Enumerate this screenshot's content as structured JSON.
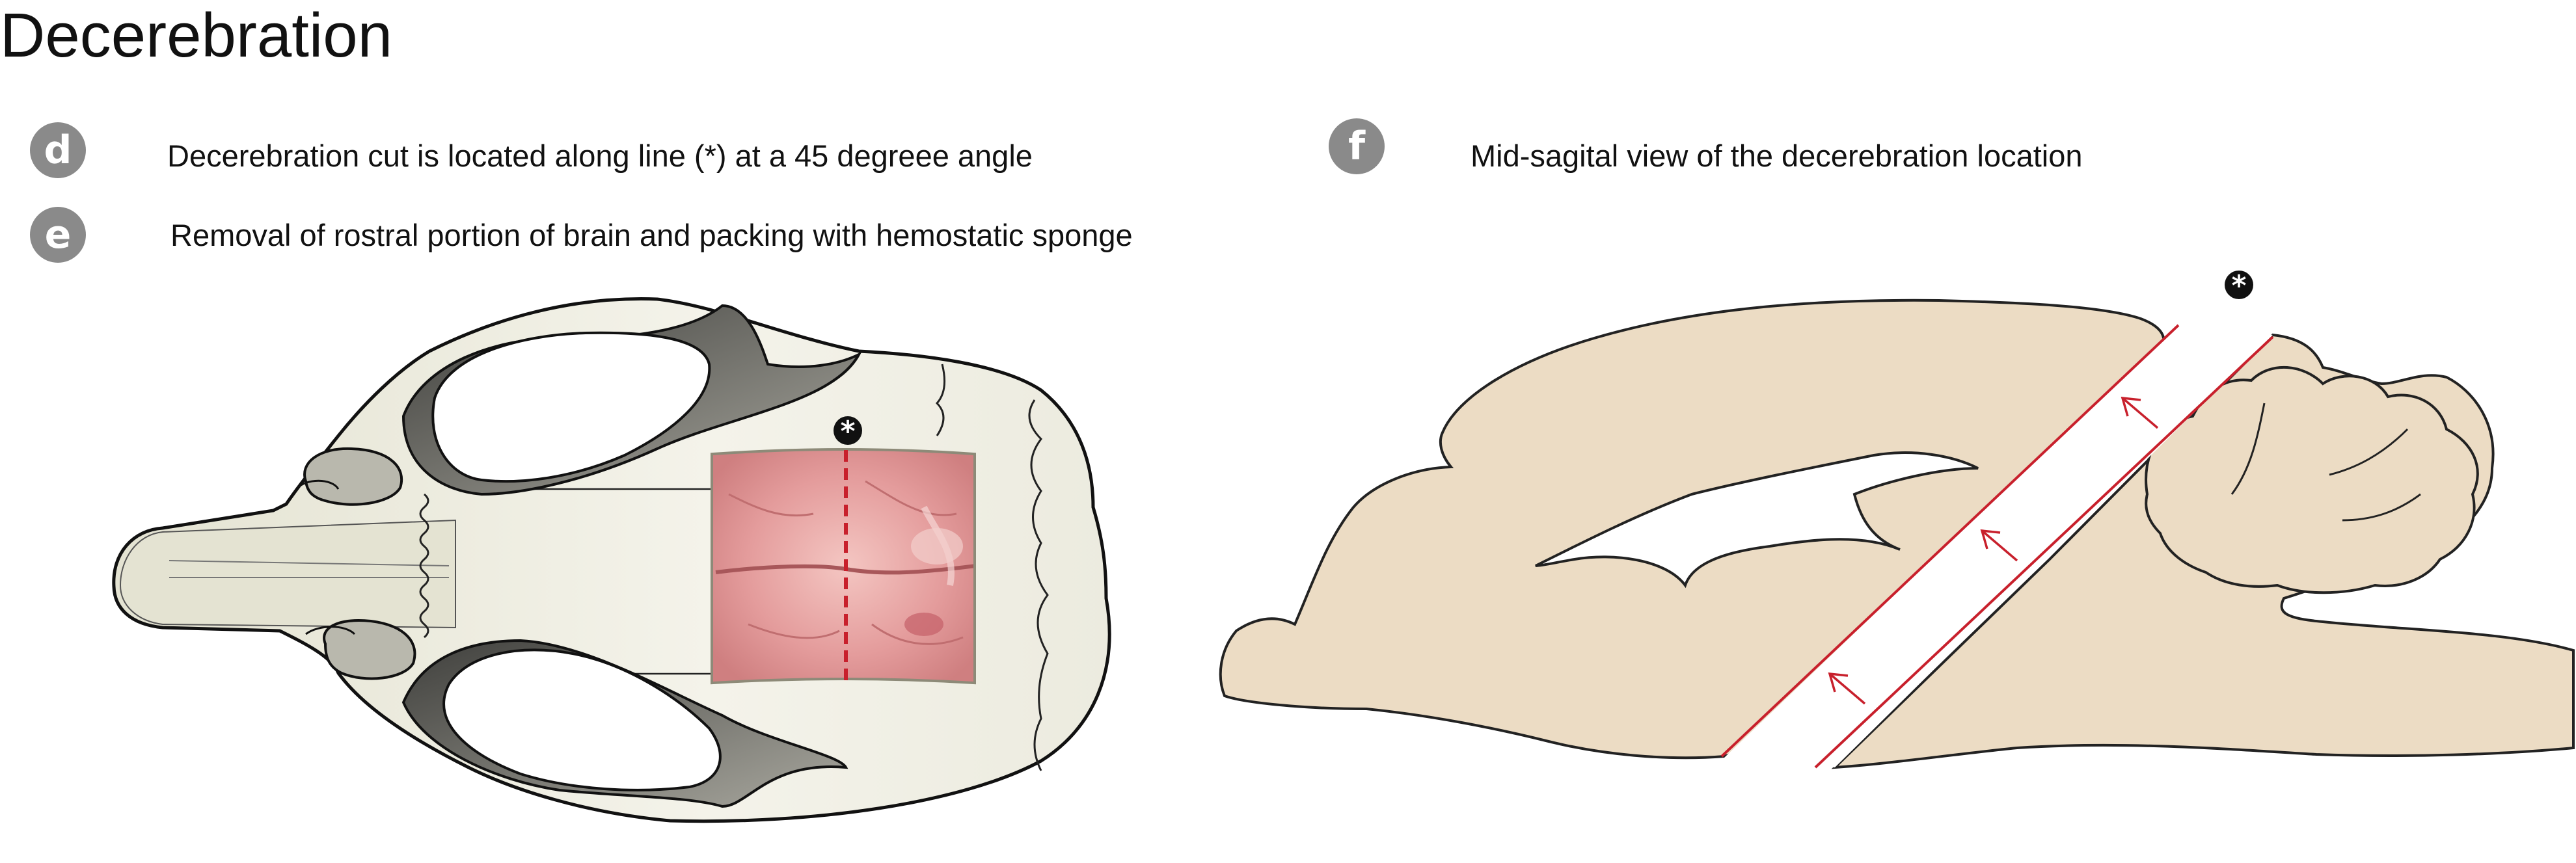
{
  "title": "Decerebration",
  "panels": {
    "d": {
      "letter": "d",
      "caption": "Decerebration cut is located along line (*) at a 45 degreee angle"
    },
    "e": {
      "letter": "e",
      "caption": "Removal of rostral portion of brain and packing with hemostatic sponge"
    },
    "f": {
      "letter": "f",
      "caption": "Mid-sagital view of the decerebration location"
    }
  },
  "markers": {
    "cut_line_marker": "*"
  },
  "colors": {
    "badge": "#8a8a8a",
    "skull_fill": "#ecebdf",
    "skull_shadow": "#6e6e68",
    "brain_tissue": "#ecdcc4",
    "cut_line": "#c8202c",
    "exposed_brain": "#e6a0a0"
  }
}
